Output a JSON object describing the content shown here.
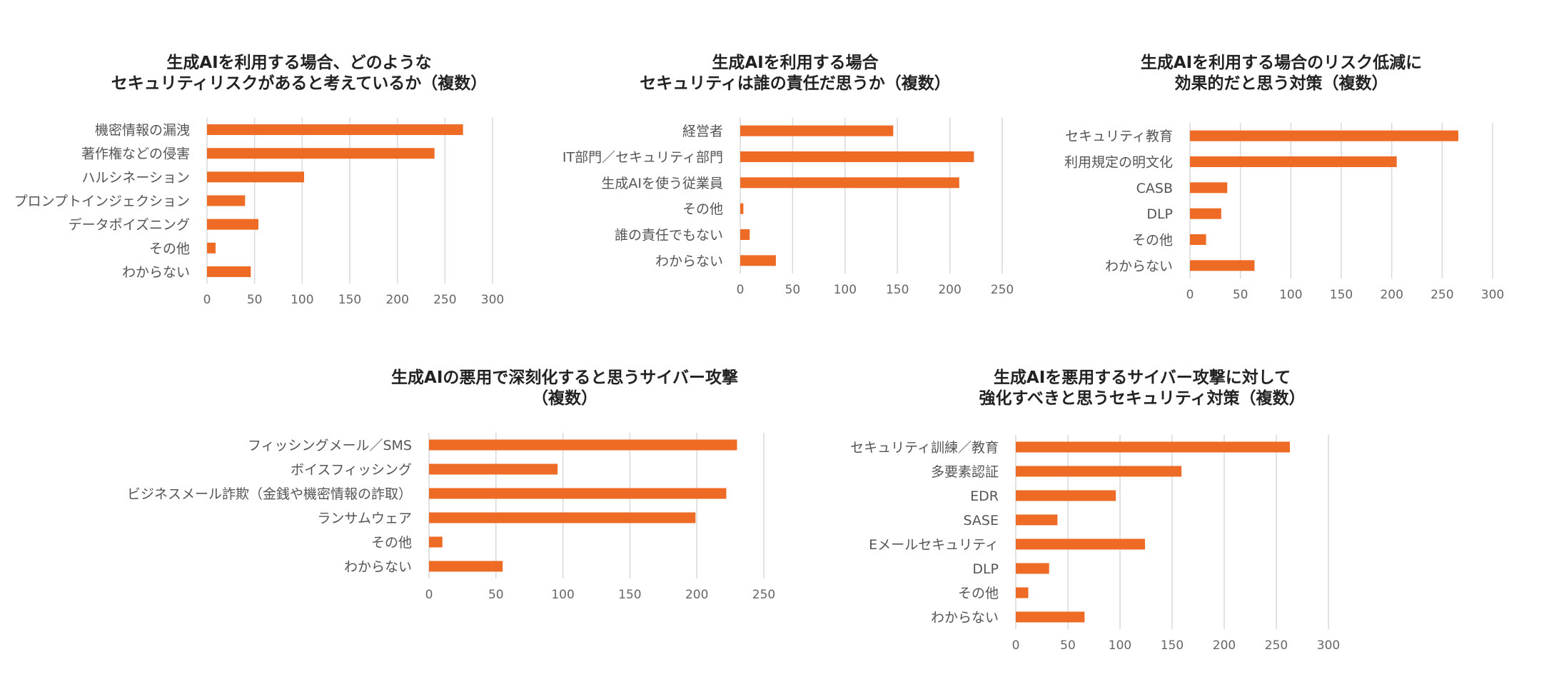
{
  "colors": {
    "bar": "#ED6B25",
    "grid": "#D9D9D9",
    "title": "#222222",
    "label": "#555555"
  },
  "chart_data": [
    {
      "type": "bar",
      "orientation": "horizontal",
      "title": [
        "生成AIを利用する場合、どのような",
        "セキュリティリスクがあると考えているか（複数）"
      ],
      "categories": [
        "機密情報の漏洩",
        "著作権などの侵害",
        "ハルシネーション",
        "プロンプトインジェクション",
        "データポイズニング",
        "その他",
        "わからない"
      ],
      "values": [
        269,
        239,
        102,
        40,
        54,
        9,
        46
      ],
      "xlim": [
        0,
        300
      ],
      "xticks": [
        0,
        50,
        100,
        150,
        200,
        250,
        300
      ],
      "grid": true
    },
    {
      "type": "bar",
      "orientation": "horizontal",
      "title": [
        "生成AIを利用する場合",
        "セキュリティは誰の責任だ思うか（複数）"
      ],
      "categories": [
        "経営者",
        "IT部門／セキュリティ部門",
        "生成AIを使う従業員",
        "その他",
        "誰の責任でもない",
        "わからない"
      ],
      "values": [
        146,
        223,
        209,
        3,
        9,
        34
      ],
      "xlim": [
        0,
        250
      ],
      "xticks": [
        0,
        50,
        100,
        150,
        200,
        250
      ],
      "grid": true
    },
    {
      "type": "bar",
      "orientation": "horizontal",
      "title": [
        "生成AIを利用する場合のリスク低減に",
        "効果的だと思う対策（複数）"
      ],
      "categories": [
        "セキュリティ教育",
        "利用規定の明文化",
        "CASB",
        "DLP",
        "その他",
        "わからない"
      ],
      "values": [
        266,
        205,
        37,
        31,
        16,
        64
      ],
      "xlim": [
        0,
        300
      ],
      "xticks": [
        0,
        50,
        100,
        150,
        200,
        250,
        300
      ],
      "grid": true
    },
    {
      "type": "bar",
      "orientation": "horizontal",
      "title": [
        "生成AIの悪用で深刻化すると思うサイバー攻撃",
        "（複数）"
      ],
      "categories": [
        "フィッシングメール／SMS",
        "ボイスフィッシング",
        "ビジネスメール詐欺（金銭や機密情報の詐取）",
        "ランサムウェア",
        "その他",
        "わからない"
      ],
      "values": [
        230,
        96,
        222,
        199,
        10,
        55
      ],
      "xlim": [
        0,
        250
      ],
      "xticks": [
        0,
        50,
        100,
        150,
        200,
        250
      ],
      "grid": true
    },
    {
      "type": "bar",
      "orientation": "horizontal",
      "title": [
        "生成AIを悪用するサイバー攻撃に対して",
        "強化すべきと思うセキュリティ対策（複数）"
      ],
      "categories": [
        "セキュリティ訓練／教育",
        "多要素認証",
        "EDR",
        "SASE",
        "Eメールセキュリティ",
        "DLP",
        "その他",
        "わからない"
      ],
      "values": [
        263,
        159,
        96,
        40,
        124,
        32,
        12,
        66
      ],
      "xlim": [
        0,
        300
      ],
      "xticks": [
        0,
        50,
        100,
        150,
        200,
        250,
        300
      ],
      "grid": true
    }
  ]
}
